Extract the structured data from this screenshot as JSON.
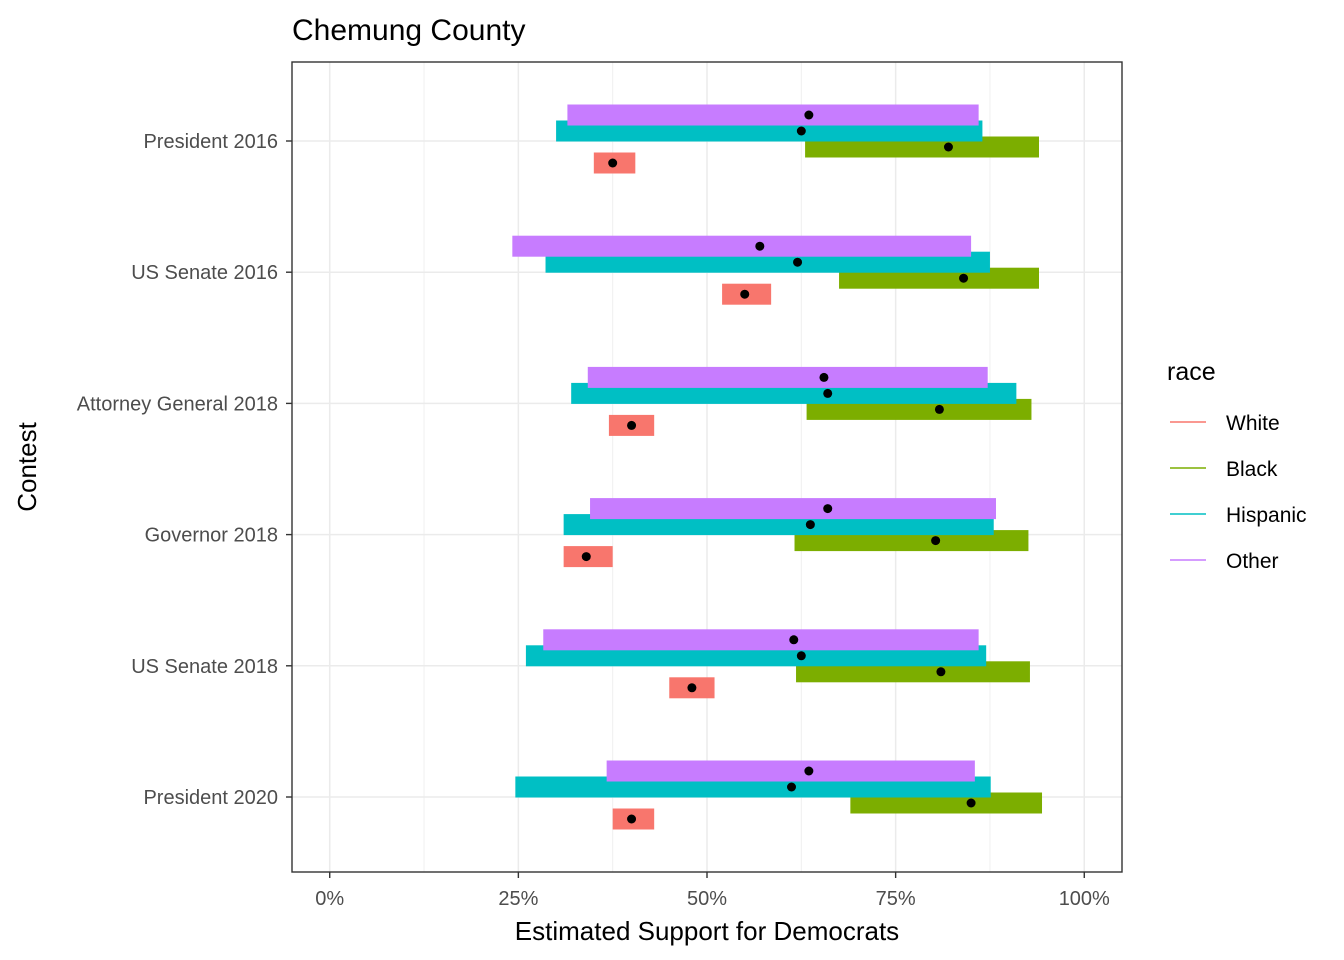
{
  "chart_data": {
    "type": "interval",
    "title": "Chemung County",
    "xlabel": "Estimated Support for Democrats",
    "ylabel": "Contest",
    "xlim": [
      -0.05,
      1.05
    ],
    "x_ticks": [
      0,
      0.25,
      0.5,
      0.75,
      1.0
    ],
    "x_tick_labels": [
      "0%",
      "25%",
      "50%",
      "75%",
      "100%"
    ],
    "grid": true,
    "legend_position": "right",
    "legend_title": "race",
    "categories": [
      "President 2016",
      "US Senate 2016",
      "Attorney General 2018",
      "Governor 2018",
      "US Senate 2018",
      "President 2020"
    ],
    "series": [
      {
        "name": "White",
        "color": "#F8766D",
        "low": [
          0.35,
          0.52,
          0.37,
          0.31,
          0.45,
          0.375
        ],
        "high": [
          0.405,
          0.585,
          0.43,
          0.375,
          0.51,
          0.43
        ],
        "estimate": [
          0.375,
          0.55,
          0.4,
          0.34,
          0.48,
          0.4
        ]
      },
      {
        "name": "Black",
        "color": "#7CAE00",
        "low": [
          0.63,
          0.675,
          0.632,
          0.616,
          0.618,
          0.69
        ],
        "high": [
          0.94,
          0.94,
          0.93,
          0.926,
          0.928,
          0.944
        ],
        "estimate": [
          0.82,
          0.84,
          0.808,
          0.803,
          0.81,
          0.85
        ]
      },
      {
        "name": "Hispanic",
        "color": "#00BFC4",
        "low": [
          0.3,
          0.286,
          0.32,
          0.31,
          0.26,
          0.246
        ],
        "high": [
          0.865,
          0.875,
          0.91,
          0.88,
          0.87,
          0.876
        ],
        "estimate": [
          0.625,
          0.62,
          0.66,
          0.637,
          0.625,
          0.612
        ]
      },
      {
        "name": "Other",
        "color": "#C77CFF",
        "low": [
          0.315,
          0.242,
          0.342,
          0.345,
          0.283,
          0.367
        ],
        "high": [
          0.86,
          0.85,
          0.872,
          0.883,
          0.86,
          0.855
        ],
        "estimate": [
          0.635,
          0.57,
          0.655,
          0.66,
          0.615,
          0.635
        ]
      }
    ]
  }
}
